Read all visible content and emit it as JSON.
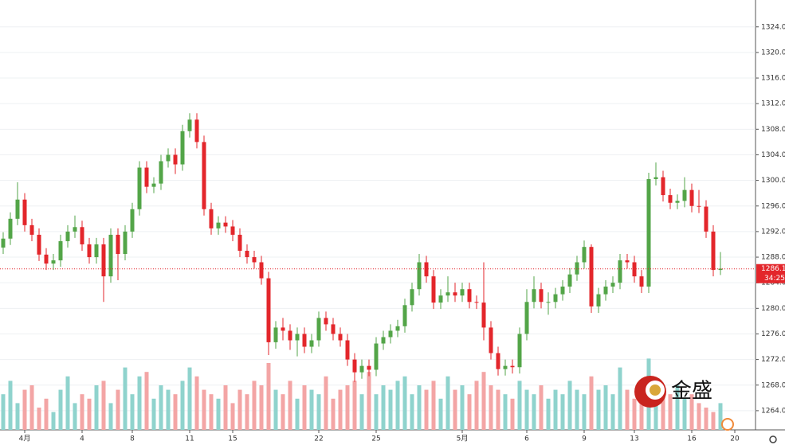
{
  "chart_data": {
    "type": "candlestick",
    "categories": [
      null,
      null,
      null,
      "4月",
      null,
      null,
      null,
      null,
      null,
      null,
      null,
      "4",
      null,
      null,
      null,
      null,
      null,
      null,
      "8",
      null,
      null,
      null,
      null,
      null,
      null,
      null,
      "11",
      null,
      null,
      null,
      null,
      null,
      "15",
      null,
      null,
      null,
      null,
      null,
      null,
      null,
      null,
      null,
      null,
      null,
      "22",
      null,
      null,
      null,
      null,
      null,
      null,
      null,
      "25",
      null,
      null,
      null,
      null,
      null,
      null,
      null,
      null,
      null,
      null,
      null,
      "5月",
      null,
      null,
      null,
      null,
      null,
      null,
      null,
      null,
      "6",
      null,
      null,
      null,
      null,
      null,
      null,
      null,
      "9",
      null,
      null,
      null,
      null,
      null,
      null,
      "13",
      null,
      null,
      null,
      null,
      null,
      null,
      null,
      "16",
      null,
      null,
      null,
      null,
      null,
      "20"
    ],
    "open": [
      1289.5,
      1290.9,
      1294,
      1297,
      1293,
      1291.5,
      1288.4,
      1287,
      1287.5,
      1290.5,
      1292,
      1292.7,
      1290,
      1288,
      1290,
      1285,
      1291.5,
      1288.5,
      1292,
      1295.5,
      1302,
      1299,
      1299.5,
      1303,
      1304,
      1302.5,
      1307.7,
      1309.5,
      1306,
      1295.5,
      1292.5,
      1293.4,
      1292.8,
      1291.5,
      1289,
      1288,
      1287.2,
      1284.7,
      1274.7,
      1277,
      1276.5,
      1275,
      1276,
      1274,
      1275,
      1278.5,
      1277.5,
      1276,
      1275,
      1272,
      1270,
      1271,
      1270.4,
      1274.5,
      1275.5,
      1276.5,
      1277.2,
      1280.5,
      1283,
      1287.2,
      1285,
      1280.9,
      1282,
      1282.5,
      1282,
      1283,
      1281,
      1280.9,
      1277,
      1273,
      1270.5,
      1271,
      1270.8,
      1276,
      1281,
      1283,
      1281,
      1281,
      1282.2,
      1283.4,
      1285.3,
      1287.2,
      1289.6,
      1280.3,
      1282.2,
      1283.4,
      1284,
      1287.5,
      1287.2,
      1285,
      1283.4,
      1300.2,
      1300.5,
      1297.7,
      1296.5,
      1296.8,
      1298.5,
      1296,
      1295.9,
      1292,
      1286,
      null,
      null
    ],
    "high": [
      1291.9,
      1295,
      1299.7,
      1298,
      1294,
      1292.5,
      1289.4,
      1288.5,
      1291.5,
      1293,
      1294.5,
      1293.7,
      1291,
      1291,
      1291,
      1292.5,
      1292.5,
      1293,
      1296.5,
      1303,
      1303,
      1300.5,
      1304,
      1305,
      1305,
      1308.7,
      1310.5,
      1310.5,
      1307,
      1296.5,
      1294.4,
      1294.4,
      1293.8,
      1292.5,
      1290,
      1289,
      1288.2,
      1285.7,
      1278,
      1278.5,
      1277.5,
      1277,
      1277,
      1276,
      1279.5,
      1279.5,
      1278.5,
      1277,
      1276,
      1273,
      1272,
      1272,
      1275.5,
      1276.5,
      1277.5,
      1278.2,
      1281.5,
      1284,
      1288.5,
      1288.2,
      1286,
      1283,
      1285,
      1284,
      1284,
      1284,
      1282,
      1287.2,
      1278,
      1274,
      1272,
      1272,
      1277,
      1283,
      1285,
      1284,
      1282.5,
      1283.2,
      1284.4,
      1286.3,
      1288.2,
      1290.6,
      1290,
      1283.2,
      1284.4,
      1285,
      1288.5,
      1288.5,
      1288.2,
      1286,
      1301.2,
      1302.8,
      1301.5,
      1298.7,
      1297.8,
      1300.5,
      1299.5,
      1298.5,
      1296.9,
      1293,
      1288.8,
      null,
      null
    ],
    "low": [
      1288.5,
      1289.9,
      1293,
      1292,
      1290.5,
      1287.4,
      1286,
      1286,
      1286.5,
      1289.5,
      1291,
      1289,
      1287,
      1287,
      1281,
      1284,
      1284.4,
      1287.5,
      1291,
      1294.5,
      1298,
      1298,
      1298.5,
      1302,
      1301,
      1301.5,
      1306.7,
      1305,
      1294.5,
      1291.5,
      1291.5,
      1291.8,
      1290.5,
      1288,
      1287,
      1286.2,
      1283.7,
      1272.7,
      1273.7,
      1275,
      1273.5,
      1272.5,
      1273,
      1273,
      1274,
      1276.5,
      1275,
      1274,
      1271,
      1268.5,
      1269,
      1269.4,
      1269.4,
      1273.5,
      1274.5,
      1275.5,
      1276.2,
      1279.5,
      1282,
      1284,
      1279.9,
      1279.9,
      1281,
      1281,
      1281,
      1280,
      1279.9,
      1275,
      1272,
      1269.5,
      1269.5,
      1269.8,
      1269.8,
      1275,
      1280,
      1280,
      1279,
      1280,
      1281.2,
      1282.4,
      1284.3,
      1286.2,
      1279.3,
      1279.3,
      1281.2,
      1282.4,
      1283,
      1286.2,
      1284,
      1282.4,
      1282.4,
      1299.2,
      1296.7,
      1295.5,
      1295.5,
      1295.8,
      1295,
      1294.9,
      1291,
      1285,
      1285.2,
      null,
      null
    ],
    "close": [
      1290.9,
      1294,
      1297,
      1293,
      1291.5,
      1288.4,
      1287,
      1287.5,
      1290.5,
      1292,
      1292.7,
      1290,
      1288,
      1290,
      1285,
      1291.5,
      1288.5,
      1292,
      1295.5,
      1302,
      1299,
      1299.5,
      1303,
      1304,
      1302.5,
      1307.7,
      1309.5,
      1306,
      1295.5,
      1292.5,
      1293.4,
      1292.8,
      1291.5,
      1289,
      1288,
      1287.2,
      1284.7,
      1274.7,
      1277,
      1276.5,
      1275,
      1276,
      1274,
      1275,
      1278.5,
      1277.5,
      1276,
      1275,
      1272,
      1270,
      1271,
      1270.4,
      1274.5,
      1275.5,
      1276.5,
      1277.2,
      1280.5,
      1283,
      1287.2,
      1285,
      1280.9,
      1282,
      1282.5,
      1282,
      1283,
      1281,
      1280.9,
      1277,
      1273,
      1270.5,
      1271,
      1270.8,
      1276,
      1281,
      1283,
      1281,
      1281,
      1282.2,
      1283.4,
      1285.3,
      1287.2,
      1289.6,
      1280.3,
      1282.2,
      1283.4,
      1284,
      1287.5,
      1287.2,
      1285,
      1283.4,
      1300.2,
      1300.5,
      1297.7,
      1296.5,
      1296.8,
      1298.5,
      1296,
      1295.9,
      1292,
      1286,
      1286.2,
      null,
      null
    ],
    "volume": [
      40,
      55,
      30,
      45,
      50,
      25,
      35,
      20,
      45,
      60,
      30,
      40,
      35,
      50,
      55,
      30,
      45,
      70,
      40,
      60,
      65,
      35,
      50,
      45,
      40,
      55,
      70,
      60,
      45,
      40,
      35,
      50,
      30,
      45,
      40,
      55,
      50,
      75,
      45,
      40,
      55,
      35,
      50,
      45,
      40,
      60,
      35,
      45,
      50,
      55,
      40,
      65,
      40,
      50,
      45,
      55,
      60,
      40,
      50,
      45,
      55,
      35,
      60,
      45,
      50,
      40,
      55,
      65,
      50,
      45,
      40,
      35,
      55,
      45,
      40,
      50,
      35,
      45,
      40,
      55,
      45,
      40,
      60,
      45,
      50,
      40,
      70,
      45,
      35,
      40,
      80,
      55,
      45,
      40,
      50,
      35,
      40,
      30,
      25,
      20,
      30,
      null,
      null
    ],
    "volume_lim": [
      0,
      125
    ],
    "ylim": [
      1261,
      1328.2
    ],
    "yticks": [
      {
        "value": 1264,
        "label": "1264.00"
      },
      {
        "value": 1268,
        "label": "1268.00"
      },
      {
        "value": 1272,
        "label": "1272.00"
      },
      {
        "value": 1276,
        "label": "1276.00"
      },
      {
        "value": 1280,
        "label": "1280.00"
      },
      {
        "value": 1284,
        "label": "1284.00"
      },
      {
        "value": 1288,
        "label": "1288.00"
      },
      {
        "value": 1292,
        "label": "1292.00"
      },
      {
        "value": 1296,
        "label": "1296.00"
      },
      {
        "value": 1300,
        "label": "1300.00"
      },
      {
        "value": 1304,
        "label": "1304.00"
      },
      {
        "value": 1308,
        "label": "1308.00"
      },
      {
        "value": 1312,
        "label": "1312.00"
      },
      {
        "value": 1316,
        "label": "1316.00"
      },
      {
        "value": 1320,
        "label": "1320.00"
      },
      {
        "value": 1324,
        "label": "1324.00"
      }
    ],
    "grid": true,
    "up_color": "#53a548",
    "down_color": "#e3262b",
    "volume_up_color": "#8fd3cd",
    "volume_down_color": "#f3a5a5",
    "last_price": 1286.17,
    "countdown": "34:25",
    "watermark": "金盛"
  }
}
